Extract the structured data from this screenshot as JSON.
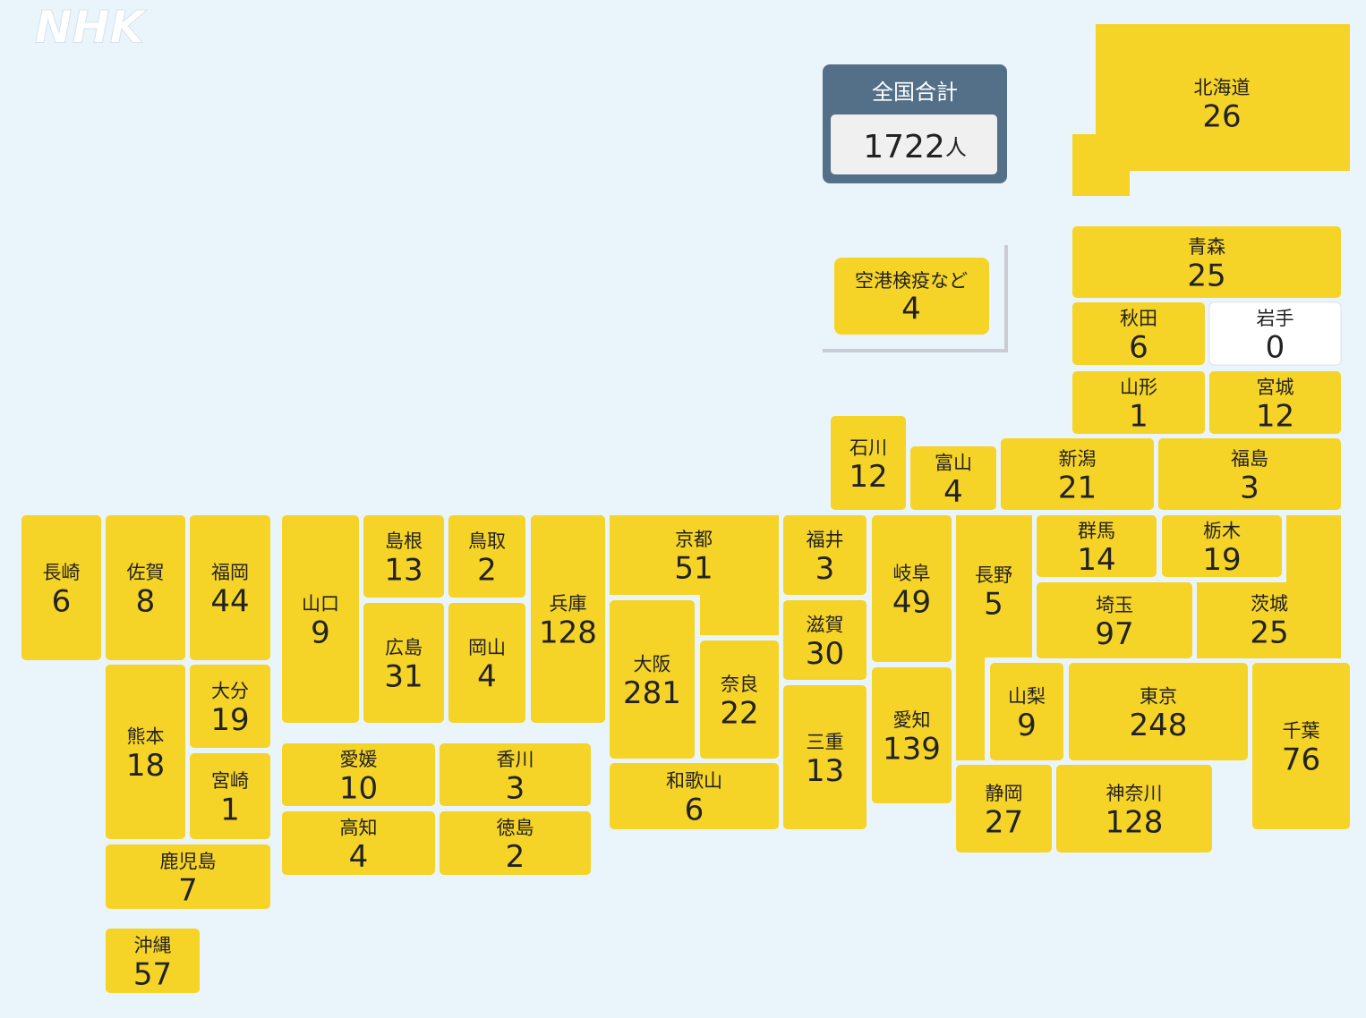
{
  "logo": "NHK",
  "total": {
    "label": "全国合計",
    "value": 1722,
    "unit": "人"
  },
  "airport": {
    "label": "空港検疫など",
    "value": 4
  },
  "prefectures": [
    {
      "name": "北海道",
      "value": 26
    },
    {
      "name": "青森",
      "value": 25
    },
    {
      "name": "秋田",
      "value": 6
    },
    {
      "name": "岩手",
      "value": 0
    },
    {
      "name": "山形",
      "value": 1
    },
    {
      "name": "宮城",
      "value": 12
    },
    {
      "name": "石川",
      "value": 12
    },
    {
      "name": "富山",
      "value": 4
    },
    {
      "name": "新潟",
      "value": 21
    },
    {
      "name": "福島",
      "value": 3
    },
    {
      "name": "長崎",
      "value": 6
    },
    {
      "name": "佐賀",
      "value": 8
    },
    {
      "name": "福岡",
      "value": 44
    },
    {
      "name": "山口",
      "value": 9
    },
    {
      "name": "島根",
      "value": 13
    },
    {
      "name": "鳥取",
      "value": 2
    },
    {
      "name": "広島",
      "value": 31
    },
    {
      "name": "岡山",
      "value": 4
    },
    {
      "name": "兵庫",
      "value": 128
    },
    {
      "name": "京都",
      "value": 51
    },
    {
      "name": "大阪",
      "value": 281
    },
    {
      "name": "奈良",
      "value": 22
    },
    {
      "name": "和歌山",
      "value": 6
    },
    {
      "name": "福井",
      "value": 3
    },
    {
      "name": "滋賀",
      "value": 30
    },
    {
      "name": "三重",
      "value": 13
    },
    {
      "name": "岐阜",
      "value": 49
    },
    {
      "name": "愛知",
      "value": 139
    },
    {
      "name": "長野",
      "value": 5
    },
    {
      "name": "群馬",
      "value": 14
    },
    {
      "name": "栃木",
      "value": 19
    },
    {
      "name": "茨城",
      "value": 25
    },
    {
      "name": "埼玉",
      "value": 97
    },
    {
      "name": "山梨",
      "value": 9
    },
    {
      "name": "東京",
      "value": 248
    },
    {
      "name": "千葉",
      "value": 76
    },
    {
      "name": "静岡",
      "value": 27
    },
    {
      "name": "神奈川",
      "value": 128
    },
    {
      "name": "熊本",
      "value": 18
    },
    {
      "name": "大分",
      "value": 19
    },
    {
      "name": "宮崎",
      "value": 1
    },
    {
      "name": "鹿児島",
      "value": 7
    },
    {
      "name": "沖縄",
      "value": 57
    },
    {
      "name": "愛媛",
      "value": 10
    },
    {
      "name": "香川",
      "value": 3
    },
    {
      "name": "高知",
      "value": 4
    },
    {
      "name": "徳島",
      "value": 2
    }
  ]
}
